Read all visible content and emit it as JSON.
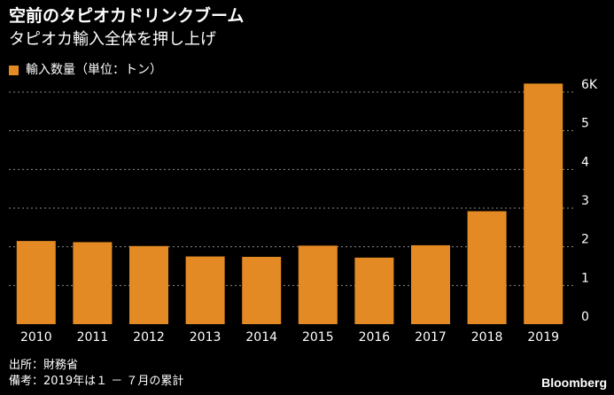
{
  "header": {
    "title": "空前のタピオカドリンクブーム",
    "subtitle": "タピオカ輸入全体を押し上げ"
  },
  "colors": {
    "background": "#000000",
    "bar": "#E38A24",
    "grid": "#8a8a8a",
    "text": "#ffffff"
  },
  "footer": {
    "source": "出所：財務省",
    "note": "備考：2019年は１ － ７月の累計",
    "brand": "Bloomberg"
  },
  "chart_data": {
    "type": "bar",
    "legend_label": "輸入数量（単位：トン）",
    "legend_position": "top-left",
    "categories": [
      "2010",
      "2011",
      "2012",
      "2013",
      "2014",
      "2015",
      "2016",
      "2017",
      "2018",
      "2019"
    ],
    "values": [
      2150,
      2120,
      2020,
      1750,
      1740,
      2030,
      1720,
      2040,
      2920,
      6220
    ],
    "ylim": [
      0,
      6000
    ],
    "yticks": [
      "0",
      "1",
      "2",
      "3",
      "4",
      "5",
      "6K"
    ],
    "ytick_values": [
      0,
      1000,
      2000,
      3000,
      4000,
      5000,
      6000
    ],
    "grid": true,
    "yaxis_side": "right"
  }
}
